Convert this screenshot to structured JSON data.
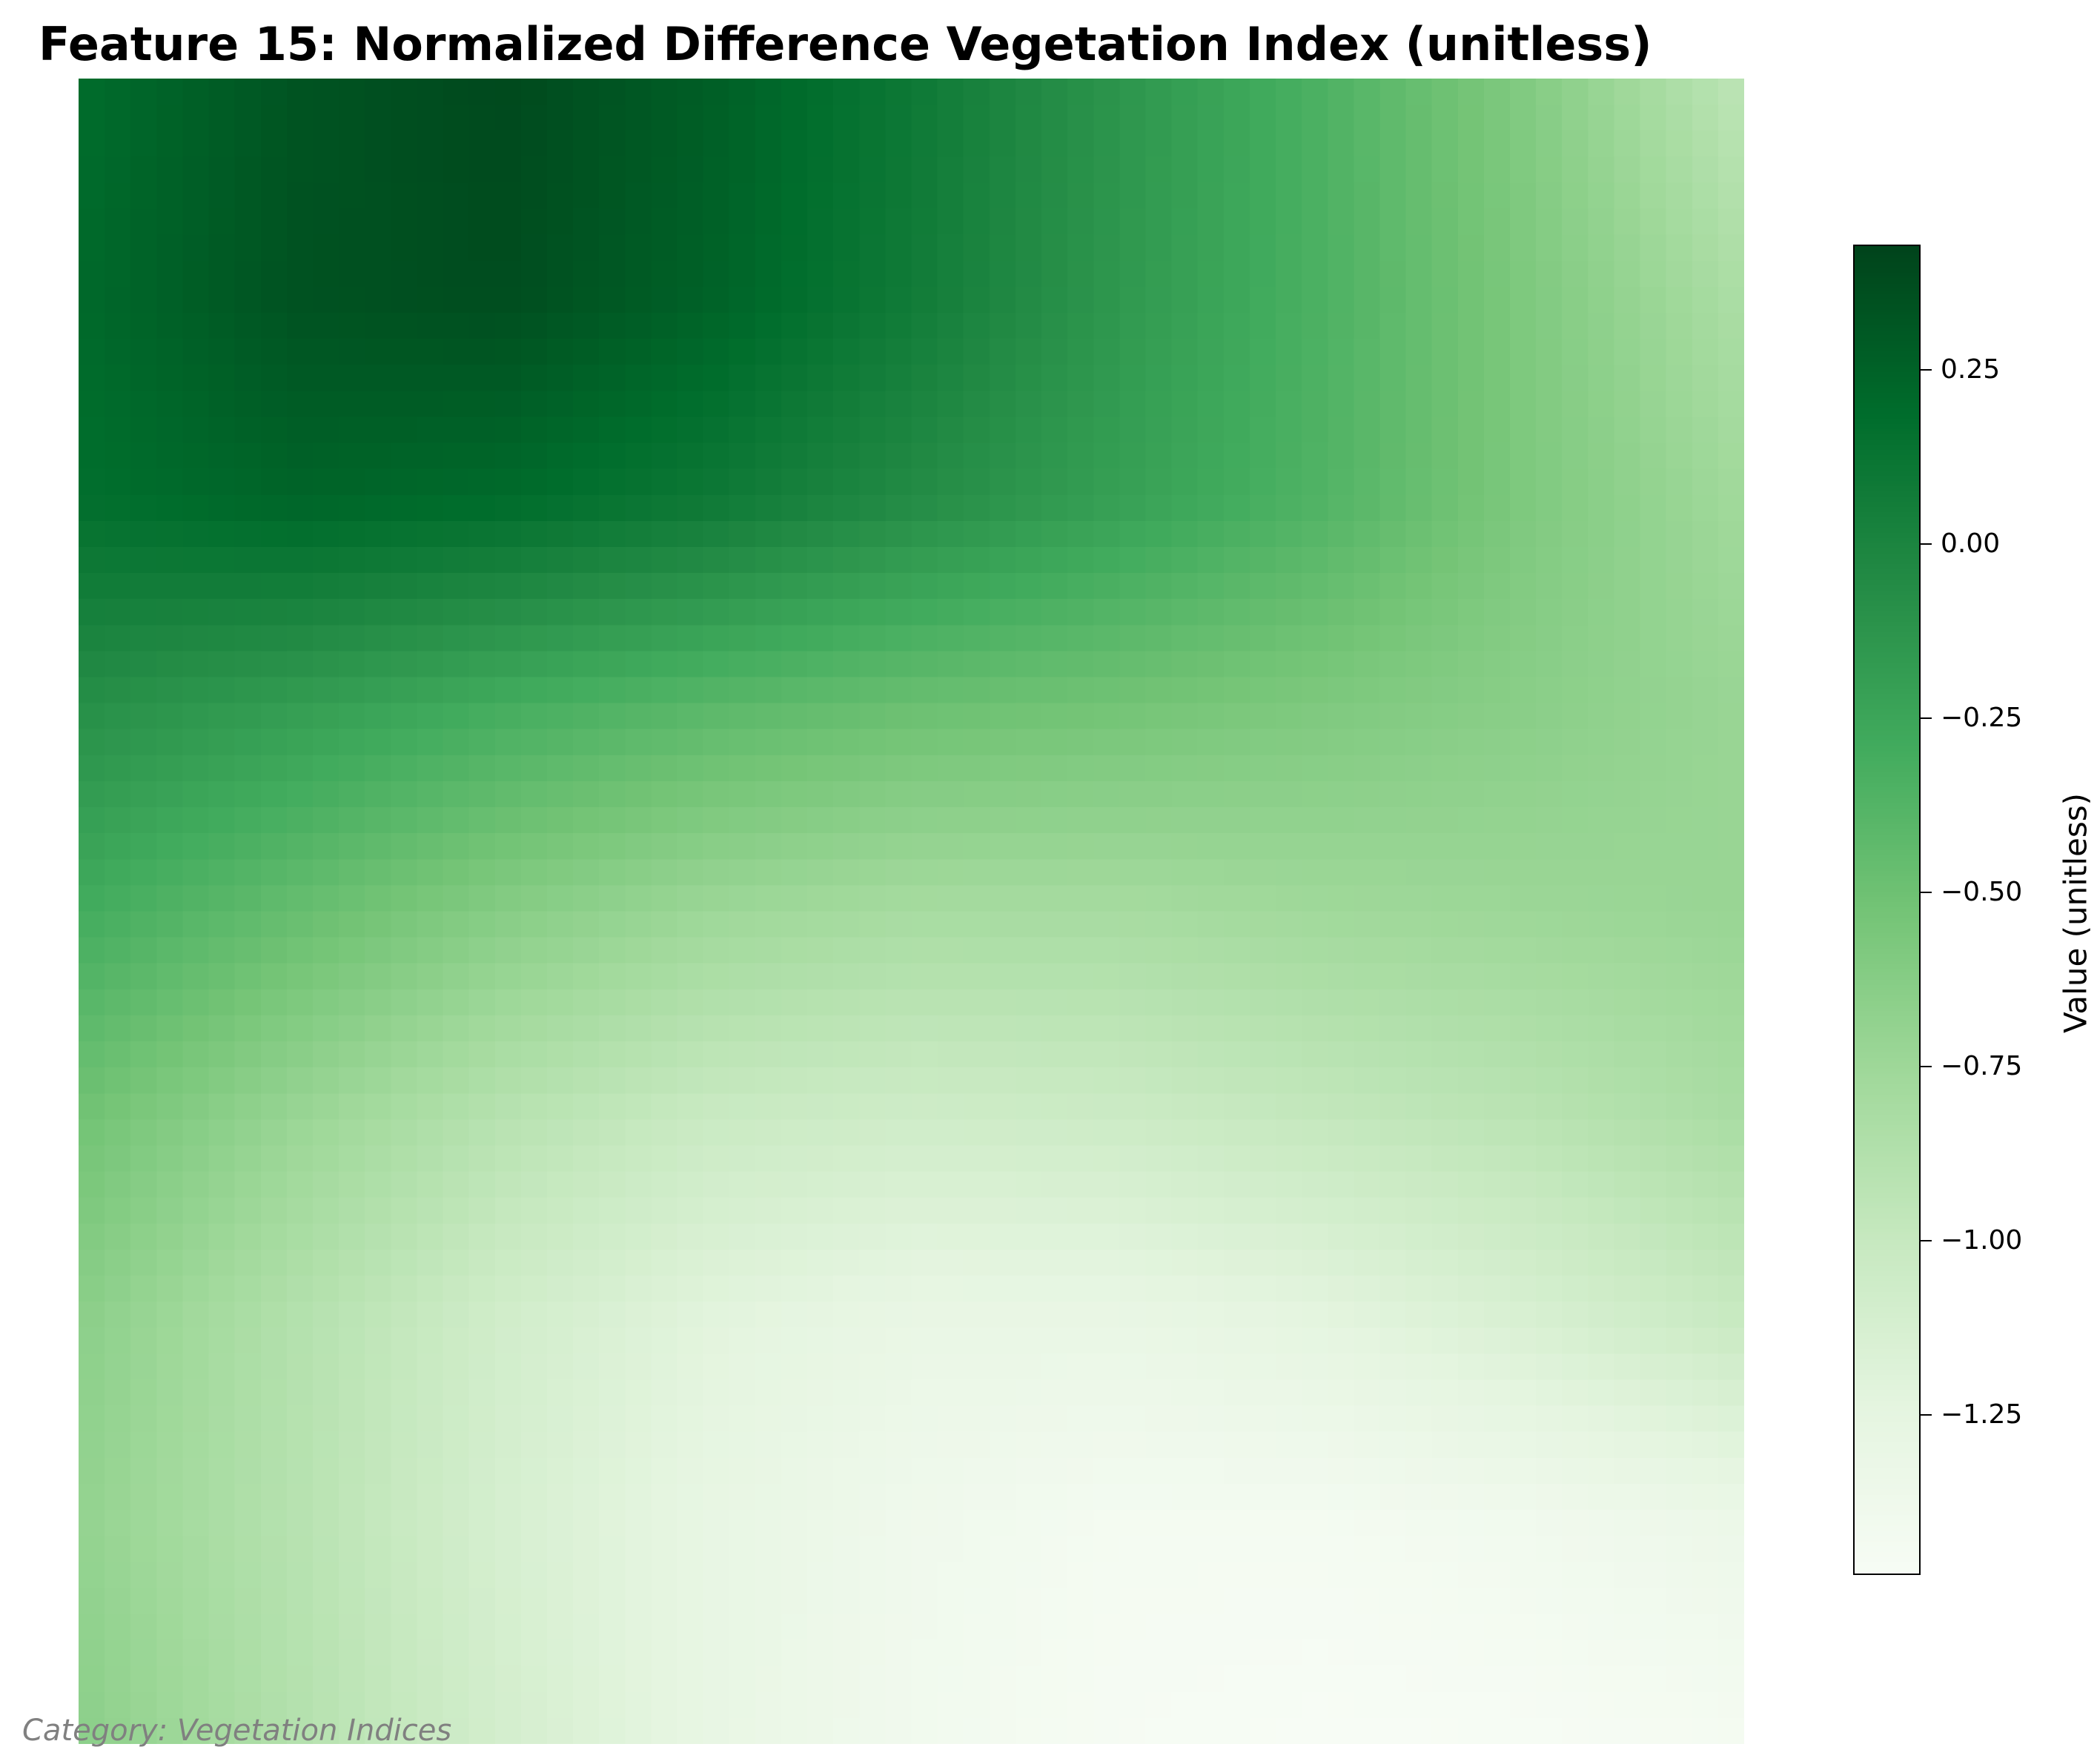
{
  "chart_data": {
    "type": "heatmap",
    "title": "Feature 15: Normalized Difference Vegetation Index (unitless)",
    "colormap": "Greens",
    "colorbar": {
      "label": "Value (unitless)",
      "range": [
        -1.48,
        0.43
      ],
      "ticks": [
        0.25,
        0.0,
        -0.25,
        -0.5,
        -0.75,
        -1.0,
        -1.25
      ],
      "tick_labels": [
        "0.25",
        "0.00",
        "−0.25",
        "−0.50",
        "−0.75",
        "−1.00",
        "−1.25"
      ]
    },
    "grid_shape": [
      64,
      64
    ],
    "field": {
      "description_values": "coarse control grid (rows top to bottom, columns left to right), interpolated across the 64x64 cells",
      "control_grid": [
        [
          0.2,
          0.34,
          0.4,
          0.28,
          0.1,
          -0.12,
          -0.34,
          -0.6,
          -0.92
        ],
        [
          0.22,
          0.35,
          0.38,
          0.26,
          0.08,
          -0.14,
          -0.34,
          -0.58,
          -0.82
        ],
        [
          0.18,
          0.24,
          0.2,
          0.1,
          -0.05,
          -0.2,
          -0.36,
          -0.58,
          -0.76
        ],
        [
          -0.08,
          -0.18,
          -0.3,
          -0.4,
          -0.48,
          -0.52,
          -0.58,
          -0.64,
          -0.72
        ],
        [
          -0.3,
          -0.46,
          -0.62,
          -0.74,
          -0.8,
          -0.8,
          -0.76,
          -0.74,
          -0.72
        ],
        [
          -0.52,
          -0.72,
          -0.9,
          -1.02,
          -1.06,
          -1.04,
          -0.98,
          -0.92,
          -0.82
        ],
        [
          -0.66,
          -0.88,
          -1.08,
          -1.22,
          -1.3,
          -1.3,
          -1.24,
          -1.14,
          -1.02
        ],
        [
          -0.7,
          -0.9,
          -1.12,
          -1.28,
          -1.38,
          -1.44,
          -1.44,
          -1.4,
          -1.34
        ],
        [
          -0.66,
          -0.88,
          -1.1,
          -1.28,
          -1.4,
          -1.46,
          -1.48,
          -1.47,
          -1.44
        ]
      ]
    }
  },
  "caption": "Category: Vegetation Indices"
}
